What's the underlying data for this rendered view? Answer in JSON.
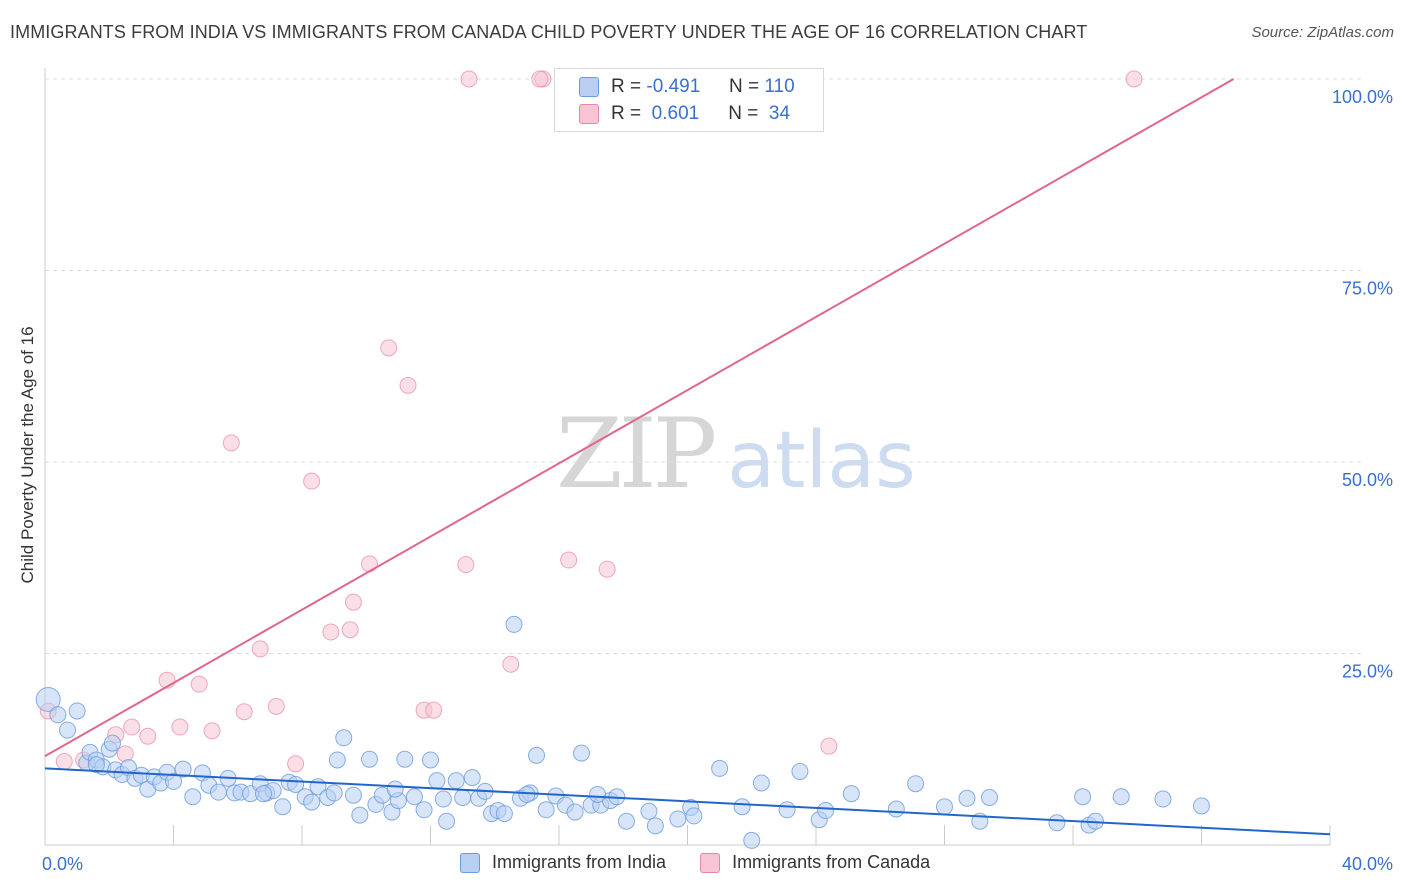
{
  "title": "IMMIGRANTS FROM INDIA VS IMMIGRANTS FROM CANADA CHILD POVERTY UNDER THE AGE OF 16 CORRELATION CHART",
  "source": "Source: ZipAtlas.com",
  "watermark": {
    "zip": "ZIP",
    "atlas": "atlas"
  },
  "colors": {
    "india": "#6b9be0",
    "india_fill": "#b8cff2",
    "canada": "#e987a6",
    "canada_fill": "#f6c4d4",
    "india_line": "#2266cc",
    "canada_line": "#e0668e",
    "tick_label": "#3a6fd0"
  },
  "legend": {
    "india": {
      "r_label": "R =",
      "r_value": "-0.491",
      "n_label": "N =",
      "n_value": "110"
    },
    "canada": {
      "r_label": "R =",
      "r_value": "0.601",
      "n_label": "N =",
      "n_value": "34"
    }
  },
  "bottom_legend": {
    "india": "Immigrants from India",
    "canada": "Immigrants from Canada"
  },
  "chart_data": {
    "type": "scatter",
    "title": "IMMIGRANTS FROM INDIA VS IMMIGRANTS FROM CANADA CHILD POVERTY UNDER THE AGE OF 16 CORRELATION CHART",
    "xlabel": "",
    "ylabel": "Child Poverty Under the Age of 16",
    "xlim": [
      0,
      40
    ],
    "ylim": [
      0,
      100
    ],
    "x_tick_labels": [
      "0.0%",
      "40.0%"
    ],
    "y_ticks": [
      25,
      50,
      75,
      100
    ],
    "y_tick_labels": [
      "25.0%",
      "50.0%",
      "75.0%",
      "100.0%"
    ],
    "grid": "horizontal dashed",
    "legend_position": "top-center",
    "series": [
      {
        "name": "Immigrants from India",
        "trend": {
          "x": [
            0,
            40
          ],
          "y": [
            10.0,
            1.4
          ]
        },
        "points": [
          [
            0.1,
            19.0
          ],
          [
            0.4,
            17.0
          ],
          [
            0.7,
            15.0
          ],
          [
            1.0,
            17.5
          ],
          [
            1.3,
            10.7
          ],
          [
            1.4,
            12.1
          ],
          [
            1.6,
            11.1
          ],
          [
            1.8,
            10.2
          ],
          [
            2.0,
            12.5
          ],
          [
            2.2,
            9.8
          ],
          [
            2.4,
            9.2
          ],
          [
            2.6,
            10.1
          ],
          [
            2.8,
            8.7
          ],
          [
            3.0,
            9.1
          ],
          [
            3.2,
            7.3
          ],
          [
            3.4,
            8.9
          ],
          [
            3.6,
            8.1
          ],
          [
            3.8,
            9.5
          ],
          [
            4.0,
            8.3
          ],
          [
            4.3,
            9.9
          ],
          [
            4.6,
            6.3
          ],
          [
            4.9,
            9.4
          ],
          [
            5.1,
            7.8
          ],
          [
            5.4,
            6.9
          ],
          [
            5.7,
            8.7
          ],
          [
            5.9,
            6.8
          ],
          [
            6.1,
            6.9
          ],
          [
            6.4,
            6.7
          ],
          [
            6.7,
            8.0
          ],
          [
            6.9,
            6.8
          ],
          [
            7.1,
            7.1
          ],
          [
            7.4,
            5.0
          ],
          [
            7.6,
            8.2
          ],
          [
            7.8,
            7.9
          ],
          [
            8.1,
            6.3
          ],
          [
            8.3,
            5.6
          ],
          [
            8.5,
            7.6
          ],
          [
            8.8,
            6.2
          ],
          [
            9.0,
            6.8
          ],
          [
            9.3,
            14.0
          ],
          [
            9.1,
            11.1
          ],
          [
            9.6,
            6.5
          ],
          [
            9.8,
            3.9
          ],
          [
            10.1,
            11.2
          ],
          [
            10.3,
            5.3
          ],
          [
            10.5,
            6.5
          ],
          [
            10.8,
            4.3
          ],
          [
            11.0,
            5.8
          ],
          [
            11.2,
            11.2
          ],
          [
            11.5,
            6.3
          ],
          [
            11.8,
            4.6
          ],
          [
            12.0,
            11.1
          ],
          [
            12.2,
            8.4
          ],
          [
            12.5,
            3.1
          ],
          [
            12.8,
            8.4
          ],
          [
            13.0,
            6.2
          ],
          [
            13.3,
            8.8
          ],
          [
            13.5,
            6.1
          ],
          [
            13.7,
            7.0
          ],
          [
            13.9,
            4.1
          ],
          [
            14.1,
            4.5
          ],
          [
            14.3,
            4.1
          ],
          [
            14.6,
            28.8
          ],
          [
            14.8,
            6.1
          ],
          [
            15.1,
            6.8
          ],
          [
            15.3,
            11.7
          ],
          [
            15.6,
            4.6
          ],
          [
            15.9,
            6.4
          ],
          [
            16.2,
            5.2
          ],
          [
            16.5,
            4.3
          ],
          [
            16.7,
            12.0
          ],
          [
            17.0,
            5.2
          ],
          [
            17.3,
            5.2
          ],
          [
            17.6,
            5.8
          ],
          [
            17.8,
            6.3
          ],
          [
            18.1,
            3.1
          ],
          [
            18.8,
            4.4
          ],
          [
            19.0,
            2.5
          ],
          [
            19.7,
            3.4
          ],
          [
            20.1,
            4.9
          ],
          [
            20.2,
            3.8
          ],
          [
            21.0,
            10.0
          ],
          [
            21.7,
            5.0
          ],
          [
            22.3,
            8.1
          ],
          [
            23.1,
            4.6
          ],
          [
            23.5,
            9.6
          ],
          [
            24.1,
            3.3
          ],
          [
            24.3,
            4.5
          ],
          [
            25.1,
            6.7
          ],
          [
            26.5,
            4.7
          ],
          [
            27.1,
            8.0
          ],
          [
            28.0,
            5.0
          ],
          [
            28.7,
            6.1
          ],
          [
            29.1,
            3.1
          ],
          [
            29.4,
            6.2
          ],
          [
            31.5,
            2.9
          ],
          [
            32.3,
            6.3
          ],
          [
            32.5,
            2.6
          ],
          [
            32.7,
            3.1
          ],
          [
            33.5,
            6.3
          ],
          [
            34.8,
            6.0
          ],
          [
            36.0,
            5.1
          ],
          [
            22.0,
            0.6
          ],
          [
            12.4,
            6.0
          ],
          [
            2.1,
            13.3
          ],
          [
            6.8,
            6.7
          ],
          [
            15.0,
            6.6
          ],
          [
            10.9,
            7.3
          ],
          [
            1.6,
            10.5
          ],
          [
            17.2,
            6.6
          ]
        ]
      },
      {
        "name": "Immigrants from Canada",
        "trend": {
          "x": [
            0,
            37
          ],
          "y": [
            11.6,
            100
          ]
        },
        "points": [
          [
            0.1,
            17.5
          ],
          [
            0.6,
            10.9
          ],
          [
            1.2,
            11.1
          ],
          [
            2.2,
            14.4
          ],
          [
            2.7,
            15.4
          ],
          [
            3.2,
            14.2
          ],
          [
            3.8,
            21.5
          ],
          [
            4.2,
            15.4
          ],
          [
            4.8,
            21.0
          ],
          [
            5.2,
            14.9
          ],
          [
            5.8,
            52.5
          ],
          [
            6.2,
            17.4
          ],
          [
            6.7,
            25.6
          ],
          [
            7.2,
            18.1
          ],
          [
            7.8,
            10.6
          ],
          [
            8.3,
            47.5
          ],
          [
            8.9,
            27.8
          ],
          [
            9.5,
            28.1
          ],
          [
            9.6,
            31.7
          ],
          [
            10.1,
            36.7
          ],
          [
            10.7,
            64.9
          ],
          [
            11.3,
            60.0
          ],
          [
            11.8,
            17.6
          ],
          [
            12.1,
            17.6
          ],
          [
            13.1,
            36.6
          ],
          [
            13.2,
            100
          ],
          [
            14.5,
            23.6
          ],
          [
            15.5,
            100
          ],
          [
            16.3,
            37.2
          ],
          [
            17.5,
            36.0
          ],
          [
            24.4,
            12.9
          ],
          [
            33.9,
            100
          ],
          [
            15.4,
            100
          ],
          [
            2.5,
            11.9
          ]
        ]
      }
    ]
  }
}
